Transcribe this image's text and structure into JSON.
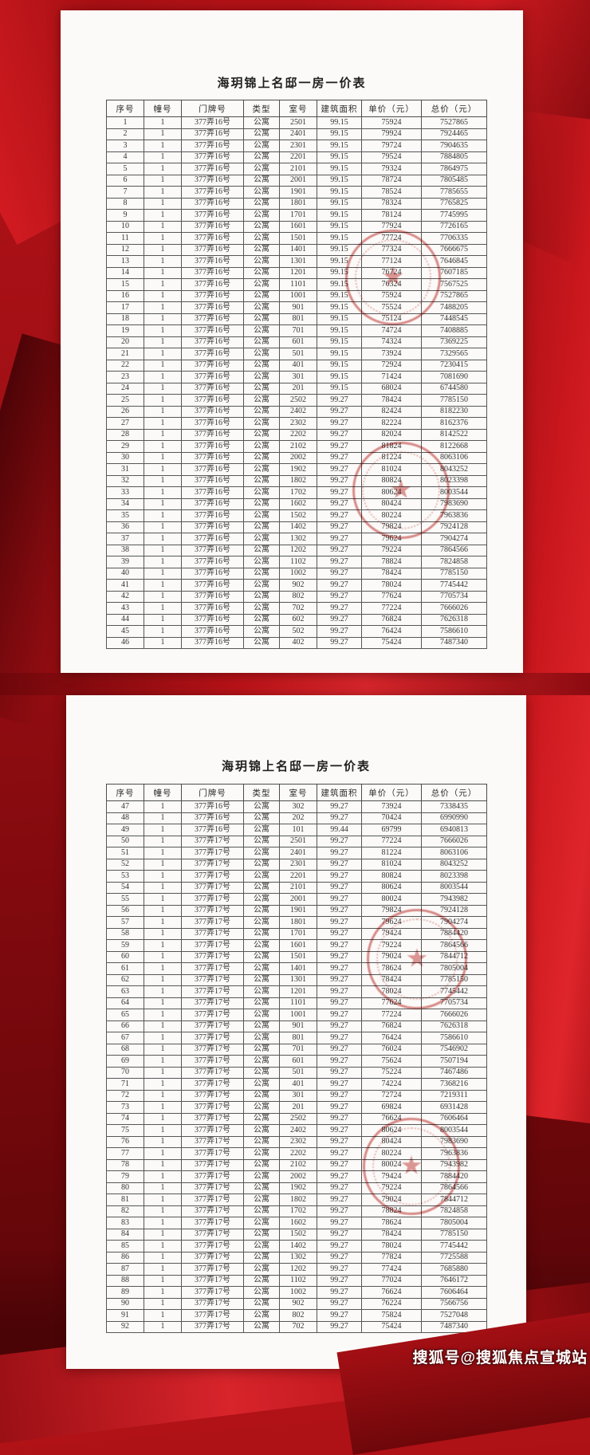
{
  "watermark": "搜狐号@搜狐焦点宣城站",
  "seal_star": "★",
  "colors": {
    "background_red": "#9c0e13",
    "bright_red": "#c9171d",
    "dark_red": "#5e0508",
    "seal_red": "#bd302c",
    "page_white": "#fbfaf8",
    "text_gray": "#343434"
  },
  "table_headers": [
    "序号",
    "幢号",
    "门牌号",
    "类型",
    "室号",
    "建筑面积",
    "单价（元）",
    "总价（元）"
  ],
  "page1": {
    "title": "海玥锦上名邸一房一价表",
    "rows": [
      [
        "1",
        "1",
        "377弄16号",
        "公寓",
        "2501",
        "99.15",
        "75924",
        "7527865"
      ],
      [
        "2",
        "1",
        "377弄16号",
        "公寓",
        "2401",
        "99.15",
        "79924",
        "7924465"
      ],
      [
        "3",
        "1",
        "377弄16号",
        "公寓",
        "2301",
        "99.15",
        "79724",
        "7904635"
      ],
      [
        "4",
        "1",
        "377弄16号",
        "公寓",
        "2201",
        "99.15",
        "79524",
        "7884805"
      ],
      [
        "5",
        "1",
        "377弄16号",
        "公寓",
        "2101",
        "99.15",
        "79324",
        "7864975"
      ],
      [
        "6",
        "1",
        "377弄16号",
        "公寓",
        "2001",
        "99.15",
        "78724",
        "7805485"
      ],
      [
        "7",
        "1",
        "377弄16号",
        "公寓",
        "1901",
        "99.15",
        "78524",
        "7785655"
      ],
      [
        "8",
        "1",
        "377弄16号",
        "公寓",
        "1801",
        "99.15",
        "78324",
        "7765825"
      ],
      [
        "9",
        "1",
        "377弄16号",
        "公寓",
        "1701",
        "99.15",
        "78124",
        "7745995"
      ],
      [
        "10",
        "1",
        "377弄16号",
        "公寓",
        "1601",
        "99.15",
        "77924",
        "7726165"
      ],
      [
        "11",
        "1",
        "377弄16号",
        "公寓",
        "1501",
        "99.15",
        "77724",
        "7706335"
      ],
      [
        "12",
        "1",
        "377弄16号",
        "公寓",
        "1401",
        "99.15",
        "77324",
        "7666675"
      ],
      [
        "13",
        "1",
        "377弄16号",
        "公寓",
        "1301",
        "99.15",
        "77124",
        "7646845"
      ],
      [
        "14",
        "1",
        "377弄16号",
        "公寓",
        "1201",
        "99.15",
        "76724",
        "7607185"
      ],
      [
        "15",
        "1",
        "377弄16号",
        "公寓",
        "1101",
        "99.15",
        "76324",
        "7567525"
      ],
      [
        "16",
        "1",
        "377弄16号",
        "公寓",
        "1001",
        "99.15",
        "75924",
        "7527865"
      ],
      [
        "17",
        "1",
        "377弄16号",
        "公寓",
        "901",
        "99.15",
        "75524",
        "7488205"
      ],
      [
        "18",
        "1",
        "377弄16号",
        "公寓",
        "801",
        "99.15",
        "75124",
        "7448545"
      ],
      [
        "19",
        "1",
        "377弄16号",
        "公寓",
        "701",
        "99.15",
        "74724",
        "7408885"
      ],
      [
        "20",
        "1",
        "377弄16号",
        "公寓",
        "601",
        "99.15",
        "74324",
        "7369225"
      ],
      [
        "21",
        "1",
        "377弄16号",
        "公寓",
        "501",
        "99.15",
        "73924",
        "7329565"
      ],
      [
        "22",
        "1",
        "377弄16号",
        "公寓",
        "401",
        "99.15",
        "72924",
        "7230415"
      ],
      [
        "23",
        "1",
        "377弄16号",
        "公寓",
        "301",
        "99.15",
        "71424",
        "7081690"
      ],
      [
        "24",
        "1",
        "377弄16号",
        "公寓",
        "201",
        "99.15",
        "68024",
        "6744580"
      ],
      [
        "25",
        "1",
        "377弄16号",
        "公寓",
        "2502",
        "99.27",
        "78424",
        "7785150"
      ],
      [
        "26",
        "1",
        "377弄16号",
        "公寓",
        "2402",
        "99.27",
        "82424",
        "8182230"
      ],
      [
        "27",
        "1",
        "377弄16号",
        "公寓",
        "2302",
        "99.27",
        "82224",
        "8162376"
      ],
      [
        "28",
        "1",
        "377弄16号",
        "公寓",
        "2202",
        "99.27",
        "82024",
        "8142522"
      ],
      [
        "29",
        "1",
        "377弄16号",
        "公寓",
        "2102",
        "99.27",
        "81824",
        "8122668"
      ],
      [
        "30",
        "1",
        "377弄16号",
        "公寓",
        "2002",
        "99.27",
        "81224",
        "8063106"
      ],
      [
        "31",
        "1",
        "377弄16号",
        "公寓",
        "1902",
        "99.27",
        "81024",
        "8043252"
      ],
      [
        "32",
        "1",
        "377弄16号",
        "公寓",
        "1802",
        "99.27",
        "80824",
        "8023398"
      ],
      [
        "33",
        "1",
        "377弄16号",
        "公寓",
        "1702",
        "99.27",
        "80624",
        "8003544"
      ],
      [
        "34",
        "1",
        "377弄16号",
        "公寓",
        "1602",
        "99.27",
        "80424",
        "7983690"
      ],
      [
        "35",
        "1",
        "377弄16号",
        "公寓",
        "1502",
        "99.27",
        "80224",
        "7963836"
      ],
      [
        "36",
        "1",
        "377弄16号",
        "公寓",
        "1402",
        "99.27",
        "79824",
        "7924128"
      ],
      [
        "37",
        "1",
        "377弄16号",
        "公寓",
        "1302",
        "99.27",
        "79624",
        "7904274"
      ],
      [
        "38",
        "1",
        "377弄16号",
        "公寓",
        "1202",
        "99.27",
        "79224",
        "7864566"
      ],
      [
        "39",
        "1",
        "377弄16号",
        "公寓",
        "1102",
        "99.27",
        "78824",
        "7824858"
      ],
      [
        "40",
        "1",
        "377弄16号",
        "公寓",
        "1002",
        "99.27",
        "78424",
        "7785150"
      ],
      [
        "41",
        "1",
        "377弄16号",
        "公寓",
        "902",
        "99.27",
        "78024",
        "7745442"
      ],
      [
        "42",
        "1",
        "377弄16号",
        "公寓",
        "802",
        "99.27",
        "77624",
        "7705734"
      ],
      [
        "43",
        "1",
        "377弄16号",
        "公寓",
        "702",
        "99.27",
        "77224",
        "7666026"
      ],
      [
        "44",
        "1",
        "377弄16号",
        "公寓",
        "602",
        "99.27",
        "76824",
        "7626318"
      ],
      [
        "45",
        "1",
        "377弄16号",
        "公寓",
        "502",
        "99.27",
        "76424",
        "7586610"
      ],
      [
        "46",
        "1",
        "377弄16号",
        "公寓",
        "402",
        "99.27",
        "75424",
        "7487340"
      ]
    ]
  },
  "page2": {
    "title": "海玥锦上名邸一房一价表",
    "rows": [
      [
        "47",
        "1",
        "377弄16号",
        "公寓",
        "302",
        "99.27",
        "73924",
        "7338435"
      ],
      [
        "48",
        "1",
        "377弄16号",
        "公寓",
        "202",
        "99.27",
        "70424",
        "6990990"
      ],
      [
        "49",
        "1",
        "377弄16号",
        "公寓",
        "101",
        "99.44",
        "69799",
        "6940813"
      ],
      [
        "50",
        "1",
        "377弄17号",
        "公寓",
        "2501",
        "99.27",
        "77224",
        "7666026"
      ],
      [
        "51",
        "1",
        "377弄17号",
        "公寓",
        "2401",
        "99.27",
        "81224",
        "8063106"
      ],
      [
        "52",
        "1",
        "377弄17号",
        "公寓",
        "2301",
        "99.27",
        "81024",
        "8043252"
      ],
      [
        "53",
        "1",
        "377弄17号",
        "公寓",
        "2201",
        "99.27",
        "80824",
        "8023398"
      ],
      [
        "54",
        "1",
        "377弄17号",
        "公寓",
        "2101",
        "99.27",
        "80624",
        "8003544"
      ],
      [
        "55",
        "1",
        "377弄17号",
        "公寓",
        "2001",
        "99.27",
        "80024",
        "7943982"
      ],
      [
        "56",
        "1",
        "377弄17号",
        "公寓",
        "1901",
        "99.27",
        "79824",
        "7924128"
      ],
      [
        "57",
        "1",
        "377弄17号",
        "公寓",
        "1801",
        "99.27",
        "79624",
        "7904274"
      ],
      [
        "58",
        "1",
        "377弄17号",
        "公寓",
        "1701",
        "99.27",
        "79424",
        "7884420"
      ],
      [
        "59",
        "1",
        "377弄17号",
        "公寓",
        "1601",
        "99.27",
        "79224",
        "7864566"
      ],
      [
        "60",
        "1",
        "377弄17号",
        "公寓",
        "1501",
        "99.27",
        "79024",
        "7844712"
      ],
      [
        "61",
        "1",
        "377弄17号",
        "公寓",
        "1401",
        "99.27",
        "78624",
        "7805004"
      ],
      [
        "62",
        "1",
        "377弄17号",
        "公寓",
        "1301",
        "99.27",
        "78424",
        "7785150"
      ],
      [
        "63",
        "1",
        "377弄17号",
        "公寓",
        "1201",
        "99.27",
        "78024",
        "7745442"
      ],
      [
        "64",
        "1",
        "377弄17号",
        "公寓",
        "1101",
        "99.27",
        "77624",
        "7705734"
      ],
      [
        "65",
        "1",
        "377弄17号",
        "公寓",
        "1001",
        "99.27",
        "77224",
        "7666026"
      ],
      [
        "66",
        "1",
        "377弄17号",
        "公寓",
        "901",
        "99.27",
        "76824",
        "7626318"
      ],
      [
        "67",
        "1",
        "377弄17号",
        "公寓",
        "801",
        "99.27",
        "76424",
        "7586610"
      ],
      [
        "68",
        "1",
        "377弄17号",
        "公寓",
        "701",
        "99.27",
        "76024",
        "7546902"
      ],
      [
        "69",
        "1",
        "377弄17号",
        "公寓",
        "601",
        "99.27",
        "75624",
        "7507194"
      ],
      [
        "70",
        "1",
        "377弄17号",
        "公寓",
        "501",
        "99.27",
        "75224",
        "7467486"
      ],
      [
        "71",
        "1",
        "377弄17号",
        "公寓",
        "401",
        "99.27",
        "74224",
        "7368216"
      ],
      [
        "72",
        "1",
        "377弄17号",
        "公寓",
        "301",
        "99.27",
        "72724",
        "7219311"
      ],
      [
        "73",
        "1",
        "377弄17号",
        "公寓",
        "201",
        "99.27",
        "69824",
        "6931428"
      ],
      [
        "74",
        "1",
        "377弄17号",
        "公寓",
        "2502",
        "99.27",
        "76624",
        "7606464"
      ],
      [
        "75",
        "1",
        "377弄17号",
        "公寓",
        "2402",
        "99.27",
        "80624",
        "8003544"
      ],
      [
        "76",
        "1",
        "377弄17号",
        "公寓",
        "2302",
        "99.27",
        "80424",
        "7983690"
      ],
      [
        "77",
        "1",
        "377弄17号",
        "公寓",
        "2202",
        "99.27",
        "80224",
        "7963836"
      ],
      [
        "78",
        "1",
        "377弄17号",
        "公寓",
        "2102",
        "99.27",
        "80024",
        "7943982"
      ],
      [
        "79",
        "1",
        "377弄17号",
        "公寓",
        "2002",
        "99.27",
        "79424",
        "7884420"
      ],
      [
        "80",
        "1",
        "377弄17号",
        "公寓",
        "1902",
        "99.27",
        "79224",
        "7864566"
      ],
      [
        "81",
        "1",
        "377弄17号",
        "公寓",
        "1802",
        "99.27",
        "79024",
        "7844712"
      ],
      [
        "82",
        "1",
        "377弄17号",
        "公寓",
        "1702",
        "99.27",
        "78824",
        "7824858"
      ],
      [
        "83",
        "1",
        "377弄17号",
        "公寓",
        "1602",
        "99.27",
        "78624",
        "7805004"
      ],
      [
        "84",
        "1",
        "377弄17号",
        "公寓",
        "1502",
        "99.27",
        "78424",
        "7785150"
      ],
      [
        "85",
        "1",
        "377弄17号",
        "公寓",
        "1402",
        "99.27",
        "78024",
        "7745442"
      ],
      [
        "86",
        "1",
        "377弄17号",
        "公寓",
        "1302",
        "99.27",
        "77824",
        "7725588"
      ],
      [
        "87",
        "1",
        "377弄17号",
        "公寓",
        "1202",
        "99.27",
        "77424",
        "7685880"
      ],
      [
        "88",
        "1",
        "377弄17号",
        "公寓",
        "1102",
        "99.27",
        "77024",
        "7646172"
      ],
      [
        "89",
        "1",
        "377弄17号",
        "公寓",
        "1002",
        "99.27",
        "76624",
        "7606464"
      ],
      [
        "90",
        "1",
        "377弄17号",
        "公寓",
        "902",
        "99.27",
        "76224",
        "7566756"
      ],
      [
        "91",
        "1",
        "377弄17号",
        "公寓",
        "802",
        "99.27",
        "75824",
        "7527048"
      ],
      [
        "92",
        "1",
        "377弄17号",
        "公寓",
        "702",
        "99.27",
        "75424",
        "7487340"
      ]
    ]
  }
}
